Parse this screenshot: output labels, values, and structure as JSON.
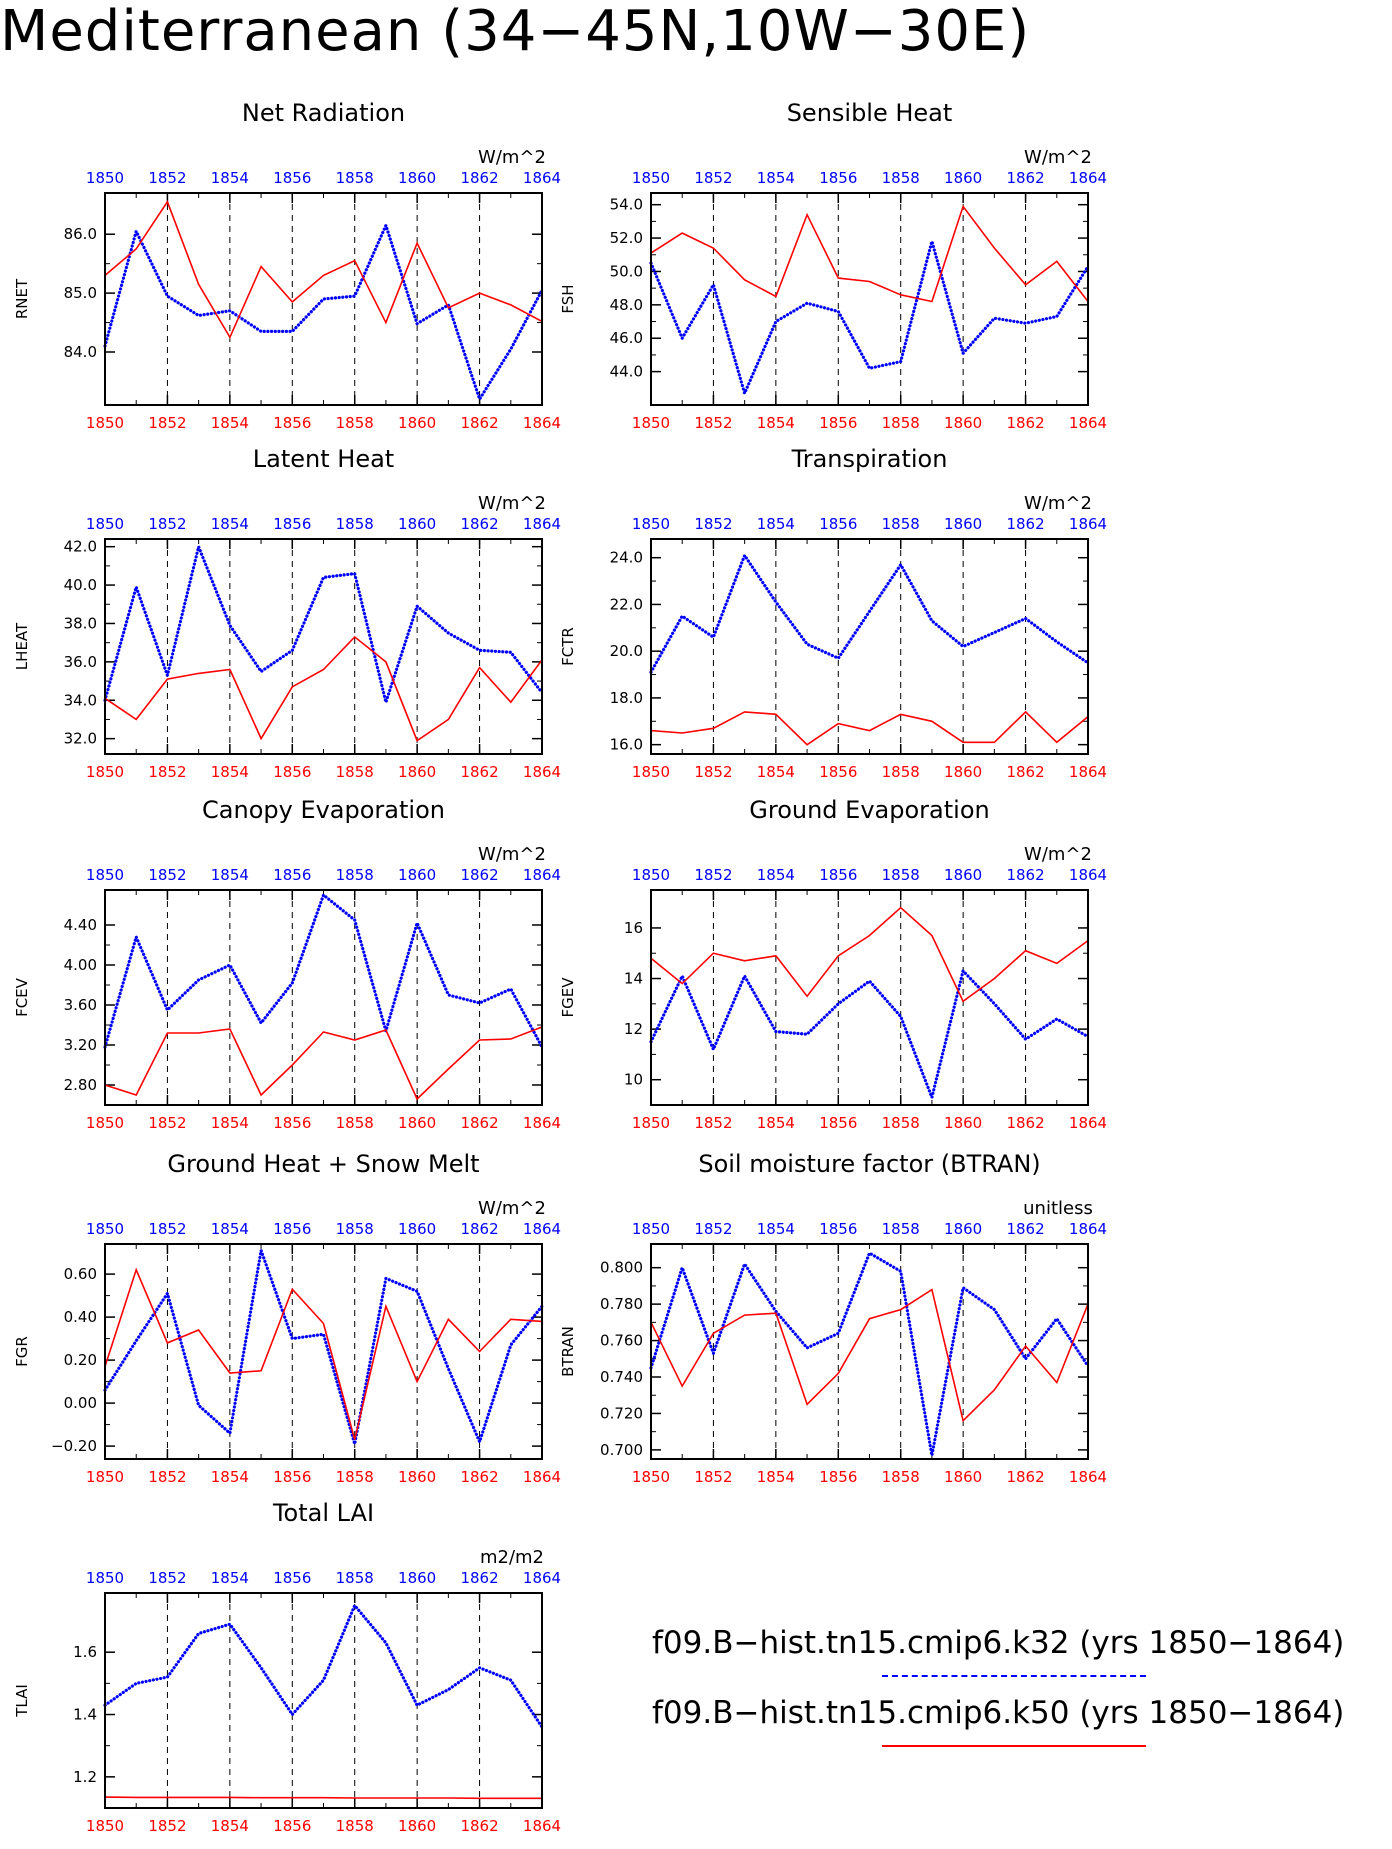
{
  "page_title": "Mediterranean (34−45N,10W−30E)",
  "legend": {
    "entries": [
      {
        "label": "f09.B−hist.tn15.cmip6.k32 (yrs 1850−1864)",
        "color": "#0000ff",
        "style": "dashed"
      },
      {
        "label": "f09.B−hist.tn15.cmip6.k50 (yrs 1850−1864)",
        "color": "#ff0000",
        "style": "solid"
      }
    ]
  },
  "chart_data": [
    {
      "type": "line",
      "title": "Net Radiation",
      "ylabel": "RNET",
      "units": "W/m^2",
      "x": [
        1850,
        1851,
        1852,
        1853,
        1854,
        1855,
        1856,
        1857,
        1858,
        1859,
        1860,
        1861,
        1862,
        1863,
        1864
      ],
      "xticks": [
        1850,
        1852,
        1854,
        1856,
        1858,
        1860,
        1862,
        1864
      ],
      "xlim": [
        1850,
        1864
      ],
      "ylim": [
        83.1,
        86.7
      ],
      "yticks": [
        84.0,
        85.0,
        86.0
      ],
      "ytick_labels": [
        "84.0",
        "85.0",
        "86.0"
      ],
      "vlines": [
        1852,
        1854,
        1856,
        1858,
        1860,
        1862
      ],
      "grid": false,
      "series": [
        {
          "name": "k32",
          "color": "#0000ff",
          "style": "dotted",
          "values": [
            84.1,
            86.05,
            84.95,
            84.62,
            84.7,
            84.35,
            84.35,
            84.9,
            84.95,
            86.15,
            84.48,
            84.8,
            83.2,
            84.05,
            85.05
          ]
        },
        {
          "name": "k50",
          "color": "#ff0000",
          "style": "solid",
          "values": [
            85.3,
            85.75,
            86.55,
            85.15,
            84.25,
            85.45,
            84.85,
            85.3,
            85.55,
            84.5,
            85.85,
            84.75,
            85.0,
            84.8,
            84.52
          ]
        }
      ]
    },
    {
      "type": "line",
      "title": "Sensible Heat",
      "ylabel": "FSH",
      "units": "W/m^2",
      "x": [
        1850,
        1851,
        1852,
        1853,
        1854,
        1855,
        1856,
        1857,
        1858,
        1859,
        1860,
        1861,
        1862,
        1863,
        1864
      ],
      "xticks": [
        1850,
        1852,
        1854,
        1856,
        1858,
        1860,
        1862,
        1864
      ],
      "xlim": [
        1850,
        1864
      ],
      "ylim": [
        42.0,
        54.7
      ],
      "yticks": [
        44.0,
        46.0,
        48.0,
        50.0,
        52.0,
        54.0
      ],
      "ytick_labels": [
        "44.0",
        "46.0",
        "48.0",
        "50.0",
        "52.0",
        "54.0"
      ],
      "vlines": [
        1852,
        1854,
        1856,
        1858,
        1860,
        1862
      ],
      "grid": false,
      "series": [
        {
          "name": "k32",
          "color": "#0000ff",
          "style": "dotted",
          "values": [
            50.5,
            46.0,
            49.2,
            42.7,
            47.0,
            48.1,
            47.6,
            44.2,
            44.6,
            51.8,
            45.1,
            47.2,
            46.9,
            47.3,
            50.3
          ]
        },
        {
          "name": "k50",
          "color": "#ff0000",
          "style": "solid",
          "values": [
            51.1,
            52.3,
            51.4,
            49.5,
            48.5,
            53.4,
            49.6,
            49.4,
            48.6,
            48.2,
            53.9,
            51.4,
            49.2,
            50.6,
            48.2
          ]
        }
      ]
    },
    {
      "type": "line",
      "title": "Latent Heat",
      "ylabel": "LHEAT",
      "units": "W/m^2",
      "x": [
        1850,
        1851,
        1852,
        1853,
        1854,
        1855,
        1856,
        1857,
        1858,
        1859,
        1860,
        1861,
        1862,
        1863,
        1864
      ],
      "xticks": [
        1850,
        1852,
        1854,
        1856,
        1858,
        1860,
        1862,
        1864
      ],
      "xlim": [
        1850,
        1864
      ],
      "ylim": [
        31.2,
        42.4
      ],
      "yticks": [
        32.0,
        34.0,
        36.0,
        38.0,
        40.0,
        42.0
      ],
      "ytick_labels": [
        "32.0",
        "34.0",
        "36.0",
        "38.0",
        "40.0",
        "42.0"
      ],
      "vlines": [
        1852,
        1854,
        1856,
        1858,
        1860,
        1862
      ],
      "grid": false,
      "series": [
        {
          "name": "k32",
          "color": "#0000ff",
          "style": "dotted",
          "values": [
            34.0,
            39.9,
            35.3,
            42.0,
            37.9,
            35.5,
            36.6,
            40.4,
            40.6,
            33.9,
            38.9,
            37.5,
            36.6,
            36.5,
            34.4
          ]
        },
        {
          "name": "k50",
          "color": "#ff0000",
          "style": "solid",
          "values": [
            34.1,
            33.0,
            35.1,
            35.4,
            35.6,
            32.0,
            34.7,
            35.6,
            37.3,
            36.0,
            31.9,
            33.0,
            35.7,
            33.9,
            36.1
          ]
        }
      ]
    },
    {
      "type": "line",
      "title": "Transpiration",
      "ylabel": "FCTR",
      "units": "W/m^2",
      "x": [
        1850,
        1851,
        1852,
        1853,
        1854,
        1855,
        1856,
        1857,
        1858,
        1859,
        1860,
        1861,
        1862,
        1863,
        1864
      ],
      "xticks": [
        1850,
        1852,
        1854,
        1856,
        1858,
        1860,
        1862,
        1864
      ],
      "xlim": [
        1850,
        1864
      ],
      "ylim": [
        15.6,
        24.8
      ],
      "yticks": [
        16.0,
        18.0,
        20.0,
        22.0,
        24.0
      ],
      "ytick_labels": [
        "16.0",
        "18.0",
        "20.0",
        "22.0",
        "24.0"
      ],
      "vlines": [
        1852,
        1854,
        1856,
        1858,
        1860,
        1862
      ],
      "grid": false,
      "series": [
        {
          "name": "k32",
          "color": "#0000ff",
          "style": "dotted",
          "values": [
            19.1,
            21.5,
            20.6,
            24.1,
            22.1,
            20.3,
            19.7,
            21.7,
            23.7,
            21.3,
            20.2,
            20.8,
            21.4,
            20.4,
            19.5
          ]
        },
        {
          "name": "k50",
          "color": "#ff0000",
          "style": "solid",
          "values": [
            16.6,
            16.5,
            16.7,
            17.4,
            17.3,
            16.0,
            16.9,
            16.6,
            17.3,
            17.0,
            16.1,
            16.1,
            17.4,
            16.1,
            17.2
          ]
        }
      ]
    },
    {
      "type": "line",
      "title": "Canopy Evaporation",
      "ylabel": "FCEV",
      "units": "W/m^2",
      "x": [
        1850,
        1851,
        1852,
        1853,
        1854,
        1855,
        1856,
        1857,
        1858,
        1859,
        1860,
        1861,
        1862,
        1863,
        1864
      ],
      "xticks": [
        1850,
        1852,
        1854,
        1856,
        1858,
        1860,
        1862,
        1864
      ],
      "xlim": [
        1850,
        1864
      ],
      "ylim": [
        2.6,
        4.75
      ],
      "yticks": [
        2.8,
        3.2,
        3.6,
        4.0,
        4.4
      ],
      "ytick_labels": [
        "2.80",
        "3.20",
        "3.60",
        "4.00",
        "4.40"
      ],
      "vlines": [
        1852,
        1854,
        1856,
        1858,
        1860,
        1862
      ],
      "grid": false,
      "series": [
        {
          "name": "k32",
          "color": "#0000ff",
          "style": "dotted",
          "values": [
            3.18,
            4.28,
            3.55,
            3.85,
            4.0,
            3.42,
            3.82,
            4.7,
            4.45,
            3.34,
            4.42,
            3.7,
            3.62,
            3.76,
            3.18
          ]
        },
        {
          "name": "k50",
          "color": "#ff0000",
          "style": "solid",
          "values": [
            2.8,
            2.7,
            3.32,
            3.32,
            3.36,
            2.7,
            3.0,
            3.33,
            3.25,
            3.35,
            2.66,
            2.96,
            3.25,
            3.26,
            3.38
          ]
        }
      ]
    },
    {
      "type": "line",
      "title": "Ground Evaporation",
      "ylabel": "FGEV",
      "units": "W/m^2",
      "x": [
        1850,
        1851,
        1852,
        1853,
        1854,
        1855,
        1856,
        1857,
        1858,
        1859,
        1860,
        1861,
        1862,
        1863,
        1864
      ],
      "xticks": [
        1850,
        1852,
        1854,
        1856,
        1858,
        1860,
        1862,
        1864
      ],
      "xlim": [
        1850,
        1864
      ],
      "ylim": [
        9.0,
        17.5
      ],
      "yticks": [
        10,
        12,
        14,
        16
      ],
      "ytick_labels": [
        "10",
        "12",
        "14",
        "16"
      ],
      "vlines": [
        1852,
        1854,
        1856,
        1858,
        1860,
        1862
      ],
      "grid": false,
      "series": [
        {
          "name": "k32",
          "color": "#0000ff",
          "style": "dotted",
          "values": [
            11.5,
            14.1,
            11.2,
            14.1,
            11.9,
            11.8,
            13.0,
            13.9,
            12.5,
            9.3,
            14.3,
            13.0,
            11.6,
            12.4,
            11.7
          ]
        },
        {
          "name": "k50",
          "color": "#ff0000",
          "style": "solid",
          "values": [
            14.8,
            13.8,
            15.0,
            14.7,
            14.9,
            13.3,
            14.9,
            15.7,
            16.8,
            15.7,
            13.1,
            14.0,
            15.1,
            14.6,
            15.5
          ]
        }
      ]
    },
    {
      "type": "line",
      "title": "Ground Heat + Snow Melt",
      "ylabel": "FGR",
      "units": "W/m^2",
      "x": [
        1850,
        1851,
        1852,
        1853,
        1854,
        1855,
        1856,
        1857,
        1858,
        1859,
        1860,
        1861,
        1862,
        1863,
        1864
      ],
      "xticks": [
        1850,
        1852,
        1854,
        1856,
        1858,
        1860,
        1862,
        1864
      ],
      "xlim": [
        1850,
        1864
      ],
      "ylim": [
        -0.26,
        0.74
      ],
      "yticks": [
        -0.2,
        0.0,
        0.2,
        0.4,
        0.6
      ],
      "ytick_labels": [
        "−0.20",
        "0.00",
        "0.20",
        "0.40",
        "0.60"
      ],
      "vlines": [
        1852,
        1854,
        1856,
        1858,
        1860,
        1862
      ],
      "grid": false,
      "series": [
        {
          "name": "k32",
          "color": "#0000ff",
          "style": "dotted",
          "values": [
            0.06,
            0.29,
            0.51,
            -0.01,
            -0.14,
            0.71,
            0.3,
            0.32,
            -0.19,
            0.58,
            0.52,
            0.16,
            -0.18,
            0.27,
            0.45
          ]
        },
        {
          "name": "k50",
          "color": "#ff0000",
          "style": "solid",
          "values": [
            0.17,
            0.62,
            0.28,
            0.34,
            0.14,
            0.15,
            0.53,
            0.37,
            -0.17,
            0.45,
            0.1,
            0.39,
            0.24,
            0.39,
            0.38
          ]
        }
      ]
    },
    {
      "type": "line",
      "title": "Soil moisture factor (BTRAN)",
      "ylabel": "BTRAN",
      "units": "unitless",
      "x": [
        1850,
        1851,
        1852,
        1853,
        1854,
        1855,
        1856,
        1857,
        1858,
        1859,
        1860,
        1861,
        1862,
        1863,
        1864
      ],
      "xticks": [
        1850,
        1852,
        1854,
        1856,
        1858,
        1860,
        1862,
        1864
      ],
      "xlim": [
        1850,
        1864
      ],
      "ylim": [
        0.695,
        0.813
      ],
      "yticks": [
        0.7,
        0.72,
        0.74,
        0.76,
        0.78,
        0.8
      ],
      "ytick_labels": [
        "0.700",
        "0.720",
        "0.740",
        "0.760",
        "0.780",
        "0.800"
      ],
      "vlines": [
        1852,
        1854,
        1856,
        1858,
        1860,
        1862
      ],
      "grid": false,
      "series": [
        {
          "name": "k32",
          "color": "#0000ff",
          "style": "dotted",
          "values": [
            0.745,
            0.8,
            0.753,
            0.802,
            0.776,
            0.756,
            0.764,
            0.808,
            0.798,
            0.697,
            0.789,
            0.777,
            0.75,
            0.772,
            0.746
          ]
        },
        {
          "name": "k50",
          "color": "#ff0000",
          "style": "solid",
          "values": [
            0.77,
            0.735,
            0.764,
            0.774,
            0.775,
            0.725,
            0.742,
            0.772,
            0.777,
            0.788,
            0.716,
            0.733,
            0.757,
            0.737,
            0.78
          ]
        }
      ]
    },
    {
      "type": "line",
      "title": "Total LAI",
      "ylabel": "TLAI",
      "units": "m2/m2",
      "x": [
        1850,
        1851,
        1852,
        1853,
        1854,
        1855,
        1856,
        1857,
        1858,
        1859,
        1860,
        1861,
        1862,
        1863,
        1864
      ],
      "xticks": [
        1850,
        1852,
        1854,
        1856,
        1858,
        1860,
        1862,
        1864
      ],
      "xlim": [
        1850,
        1864
      ],
      "ylim": [
        1.1,
        1.79
      ],
      "yticks": [
        1.2,
        1.4,
        1.6
      ],
      "ytick_labels": [
        "1.2",
        "1.4",
        "1.6"
      ],
      "vlines": [
        1852,
        1854,
        1856,
        1858,
        1860,
        1862
      ],
      "grid": false,
      "series": [
        {
          "name": "k32",
          "color": "#0000ff",
          "style": "dotted",
          "values": [
            1.43,
            1.5,
            1.52,
            1.66,
            1.69,
            1.55,
            1.4,
            1.51,
            1.75,
            1.63,
            1.43,
            1.48,
            1.55,
            1.51,
            1.36
          ]
        },
        {
          "name": "k50",
          "color": "#ff0000",
          "style": "solid",
          "values": [
            1.135,
            1.134,
            1.134,
            1.134,
            1.134,
            1.133,
            1.133,
            1.133,
            1.132,
            1.132,
            1.132,
            1.132,
            1.131,
            1.131,
            1.131
          ]
        }
      ]
    }
  ]
}
